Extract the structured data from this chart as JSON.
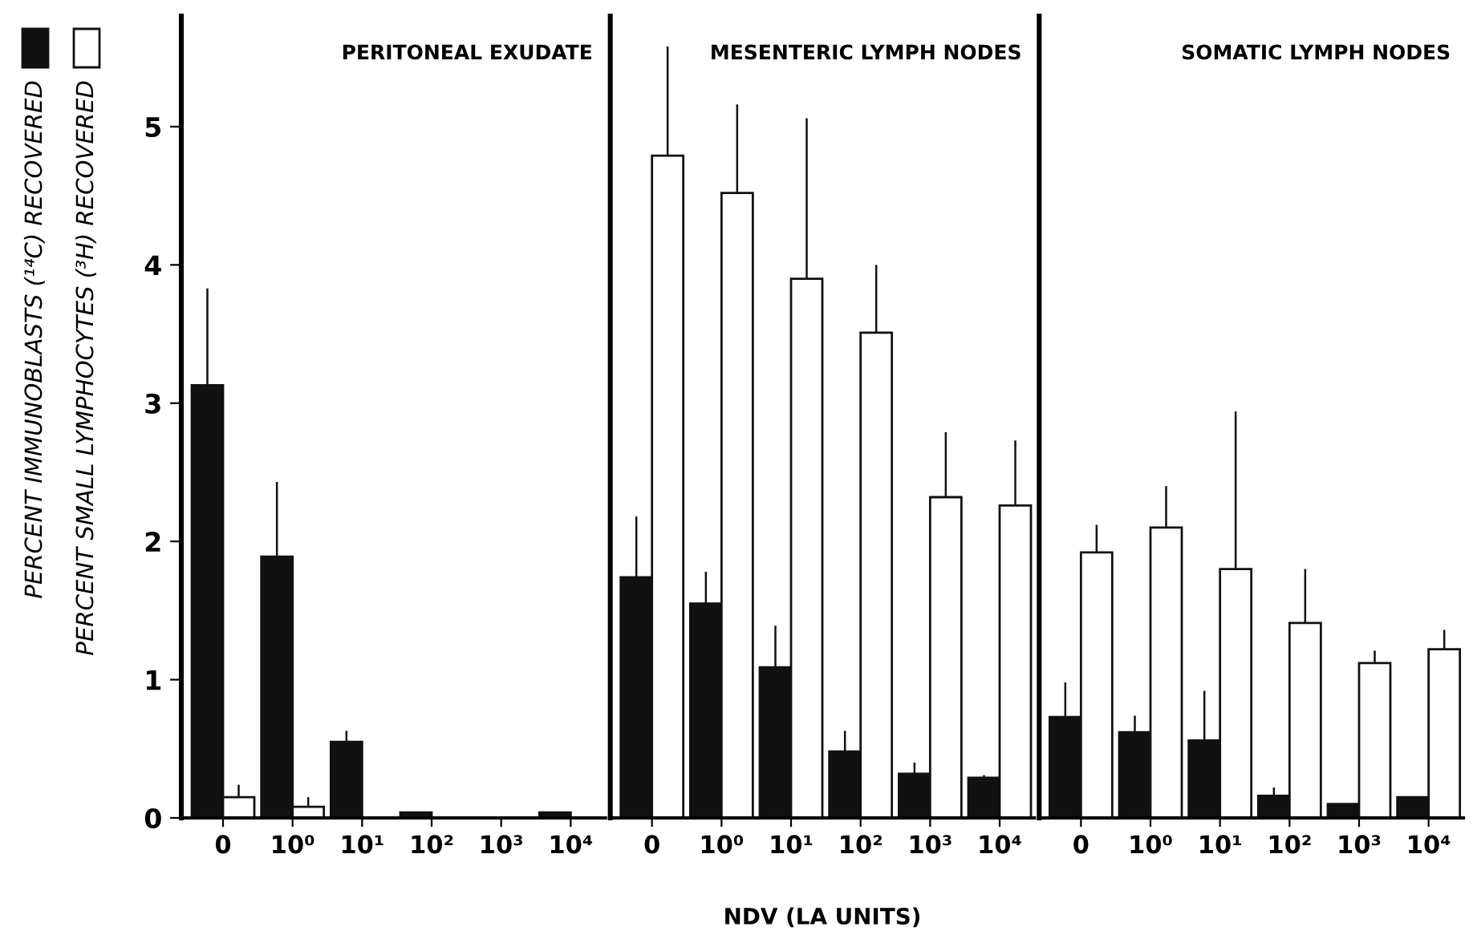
{
  "chart_data": [
    {
      "type": "bar",
      "title": "PERITONEAL EXUDATE",
      "categories": [
        "0",
        "10⁰",
        "10¹",
        "10²",
        "10³",
        "10⁴"
      ],
      "ylim": [
        0,
        5.8
      ],
      "yticks": [
        0,
        1,
        2,
        3,
        4,
        5
      ],
      "legend": "left",
      "series": [
        {
          "name": "PERCENT IMMUNOBLASTS (¹⁴C) RECOVERED",
          "color": "#111111",
          "values": [
            3.13,
            1.89,
            0.55,
            0.04,
            null,
            0.04
          ],
          "errors": [
            [
              3.13,
              3.83
            ],
            [
              1.89,
              2.43
            ],
            [
              0.55,
              0.63
            ],
            null,
            null,
            null
          ]
        },
        {
          "name": "PERCENT SMALL LYMPHOCYTES (³H) RECOVERED",
          "color": "#ffffff",
          "values": [
            0.15,
            0.08,
            null,
            null,
            null,
            null
          ],
          "errors": [
            [
              0.15,
              0.24
            ],
            [
              0.08,
              0.15
            ],
            null,
            null,
            null,
            null
          ]
        }
      ]
    },
    {
      "type": "bar",
      "title": "MESENTERIC LYMPH NODES",
      "xlabel": "NDV (LA UNITS)",
      "categories": [
        "0",
        "10⁰",
        "10¹",
        "10²",
        "10³",
        "10⁴"
      ],
      "ylim": [
        0,
        5.8
      ],
      "tick_labels": "x",
      "series": [
        {
          "color": "#111111",
          "values": [
            1.74,
            1.55,
            1.09,
            0.48,
            0.32,
            0.29
          ],
          "errors": [
            [
              1.74,
              2.18
            ],
            [
              1.55,
              1.78
            ],
            [
              1.09,
              1.39
            ],
            [
              0.48,
              0.63
            ],
            [
              0.32,
              0.4
            ],
            [
              0.29,
              0.31
            ]
          ]
        },
        {
          "color": "#ffffff",
          "values": [
            4.79,
            4.52,
            3.9,
            3.51,
            2.32,
            2.26
          ],
          "errors": [
            [
              4.79,
              5.58
            ],
            [
              4.52,
              5.16
            ],
            [
              3.9,
              5.06
            ],
            [
              3.51,
              4.0
            ],
            [
              2.32,
              2.79
            ],
            [
              2.26,
              2.73
            ]
          ]
        }
      ]
    },
    {
      "type": "bar",
      "title": "SOMATIC LYMPH NODES",
      "categories": [
        "0",
        "10⁰",
        "10¹",
        "10²",
        "10³",
        "10⁴"
      ],
      "ylim": [
        0,
        5.8
      ],
      "tick_labels": "x",
      "series": [
        {
          "color": "#111111",
          "values": [
            0.73,
            0.62,
            0.56,
            0.16,
            0.1,
            0.15
          ],
          "errors": [
            [
              0.73,
              0.98
            ],
            [
              0.62,
              0.74
            ],
            [
              0.56,
              0.92
            ],
            [
              0.16,
              0.22
            ],
            null,
            null
          ]
        },
        {
          "color": "#ffffff",
          "values": [
            1.92,
            2.1,
            1.8,
            1.41,
            1.12,
            1.22
          ],
          "errors": [
            [
              1.92,
              2.12
            ],
            [
              2.1,
              2.4
            ],
            [
              1.8,
              2.94
            ],
            [
              1.41,
              1.8
            ],
            [
              1.12,
              1.21
            ],
            [
              1.22,
              1.36
            ]
          ]
        }
      ]
    }
  ]
}
